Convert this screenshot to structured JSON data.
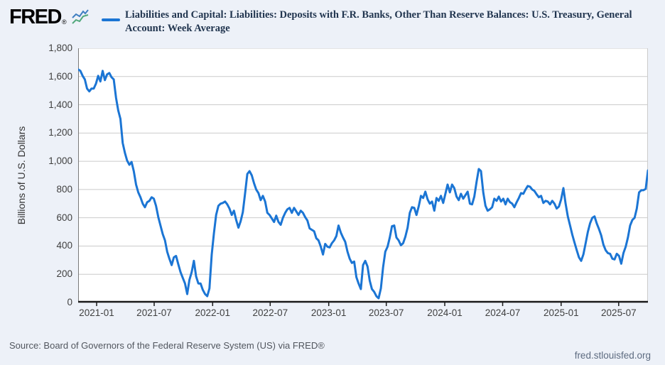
{
  "header": {
    "logo": "FRED",
    "logo_reg": "®"
  },
  "footer": {
    "source": "Source: Board of Governors of the Federal Reserve System (US) via FRED®",
    "site": "fred.stlouisfed.org"
  },
  "colors": {
    "line": "#1b75d4",
    "grid": "#cbcbcb",
    "axis_bottom": "#1a1a1a",
    "axis_left": "#7a7a7a",
    "axis_right": "#cbcbcb",
    "title": "#21354f",
    "icon_blue": "#3f7fc1",
    "icon_green": "#52a87c",
    "background": "#edf1f8",
    "plot_background": "#ffffff"
  },
  "chart_data": {
    "type": "line",
    "title": "Liabilities and Capital: Liabilities: Deposits with F.R. Banks, Other Than Reserve Balances: U.S. Treasury, General Account: Week Average",
    "ylabel": "Billions of U.S. Dollars",
    "ylim": [
      0,
      1800
    ],
    "ytick_step": 200,
    "xtick_labels": [
      "2021-01",
      "2021-07",
      "2022-01",
      "2022-07",
      "2023-01",
      "2023-07",
      "2024-01",
      "2024-07",
      "2025-01",
      "2025-07"
    ],
    "grid": "horizontal-only",
    "legend_position": "top",
    "start_date": "2020-11-04",
    "frequency_days": 7,
    "series": [
      {
        "name": "Liabilities and Capital: Liabilities: Deposits with F.R. Banks, Other Than Reserve Balances: U.S. Treasury, General Account: Week Average",
        "values": [
          1650,
          1640,
          1605,
          1580,
          1515,
          1495,
          1515,
          1515,
          1550,
          1605,
          1565,
          1640,
          1575,
          1615,
          1625,
          1595,
          1580,
          1450,
          1360,
          1300,
          1130,
          1060,
          1005,
          975,
          995,
          930,
          835,
          780,
          745,
          700,
          675,
          710,
          720,
          745,
          735,
          685,
          605,
          545,
          485,
          440,
          360,
          310,
          265,
          320,
          330,
          270,
          215,
          175,
          135,
          60,
          160,
          215,
          295,
          185,
          135,
          135,
          90,
          60,
          45,
          100,
          340,
          490,
          620,
          685,
          700,
          705,
          715,
          695,
          665,
          620,
          650,
          585,
          530,
          575,
          640,
          775,
          910,
          930,
          900,
          845,
          800,
          775,
          725,
          755,
          715,
          635,
          620,
          595,
          570,
          615,
          570,
          550,
          600,
          635,
          660,
          670,
          635,
          670,
          645,
          620,
          650,
          635,
          605,
          580,
          525,
          515,
          505,
          455,
          440,
          395,
          340,
          415,
          395,
          390,
          420,
          440,
          470,
          545,
          495,
          460,
          430,
          360,
          310,
          280,
          290,
          180,
          135,
          95,
          265,
          295,
          255,
          155,
          95,
          75,
          45,
          30,
          100,
          250,
          360,
          395,
          460,
          540,
          545,
          460,
          440,
          405,
          420,
          465,
          530,
          635,
          675,
          670,
          620,
          680,
          755,
          740,
          785,
          730,
          700,
          715,
          650,
          740,
          720,
          755,
          705,
          770,
          835,
          780,
          835,
          810,
          750,
          725,
          770,
          735,
          760,
          785,
          700,
          695,
          750,
          855,
          945,
          930,
          780,
          685,
          650,
          660,
          675,
          735,
          720,
          750,
          715,
          735,
          695,
          735,
          710,
          700,
          675,
          710,
          740,
          775,
          770,
          800,
          825,
          820,
          800,
          790,
          765,
          745,
          755,
          705,
          720,
          715,
          695,
          720,
          700,
          665,
          680,
          730,
          810,
          700,
          610,
          545,
          480,
          425,
          370,
          320,
          295,
          340,
          420,
          500,
          560,
          600,
          610,
          560,
          520,
          475,
          410,
          370,
          350,
          345,
          310,
          305,
          345,
          330,
          275,
          350,
          395,
          460,
          545,
          585,
          600,
          665,
          780,
          795,
          795,
          805,
          935
        ]
      }
    ]
  }
}
